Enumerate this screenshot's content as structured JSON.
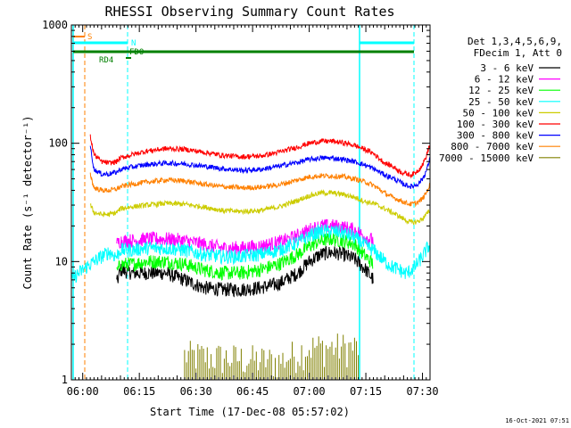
{
  "chart_data": {
    "type": "line",
    "title": "RHESSI Observing Summary Count Rates",
    "xlabel": "Start Time (17-Dec-08 05:57:02)",
    "ylabel": "Count Rate (s⁻¹ detector⁻¹)",
    "x_range_minutes": [
      0,
      95
    ],
    "x_ticks": [
      {
        "t": 3,
        "label": "06:00"
      },
      {
        "t": 18,
        "label": "06:15"
      },
      {
        "t": 33,
        "label": "06:30"
      },
      {
        "t": 48,
        "label": "06:45"
      },
      {
        "t": 63,
        "label": "07:00"
      },
      {
        "t": 78,
        "label": "07:15"
      },
      {
        "t": 93,
        "label": "07:30"
      }
    ],
    "ylim": [
      1,
      1000
    ],
    "yscale": "log",
    "y_ticks": [
      {
        "v": 1,
        "label": "1"
      },
      {
        "v": 10,
        "label": "10"
      },
      {
        "v": 100,
        "label": "100"
      },
      {
        "v": 1000,
        "label": "1000"
      }
    ],
    "legend_header": [
      "Det 1,3,4,5,6,9,",
      "FDecim 1, Att 0"
    ],
    "legend_position": "right",
    "series": [
      {
        "name": "3 - 6 keV",
        "color": "#000000",
        "x": [
          12,
          13,
          16,
          20,
          25,
          30,
          35,
          40,
          45,
          50,
          55,
          60,
          63,
          66,
          69,
          72,
          75,
          78,
          80
        ],
        "values": [
          6.5,
          8.5,
          8,
          8,
          8,
          7,
          6,
          5.8,
          5.8,
          6,
          6.5,
          8,
          10,
          11.5,
          12,
          11.5,
          10.5,
          8.5,
          7
        ]
      },
      {
        "name": "6 - 12 keV",
        "color": "#ff00ff",
        "x": [
          12,
          13,
          16,
          20,
          25,
          30,
          35,
          40,
          45,
          50,
          55,
          60,
          63,
          66,
          69,
          72,
          75,
          78,
          80
        ],
        "values": [
          14,
          15,
          15,
          15.5,
          15.5,
          15,
          14,
          13,
          13,
          13.5,
          14.5,
          16.5,
          18.5,
          20,
          20,
          19.5,
          18.5,
          16,
          15
        ]
      },
      {
        "name": "12 - 25 keV",
        "color": "#00ff00",
        "x": [
          12,
          13,
          16,
          20,
          25,
          30,
          35,
          40,
          45,
          50,
          55,
          60,
          63,
          66,
          69,
          72,
          75,
          78,
          80
        ],
        "values": [
          8,
          9.5,
          9.5,
          10,
          10,
          9.5,
          8.5,
          8,
          8,
          8.5,
          9.5,
          11.5,
          13.5,
          15,
          15.5,
          15,
          14,
          11,
          9.5
        ]
      },
      {
        "name": "25 - 50 keV",
        "color": "#00ffff",
        "x": [
          0,
          2,
          4,
          6,
          8,
          10,
          12,
          13,
          16,
          20,
          25,
          30,
          35,
          40,
          45,
          50,
          55,
          60,
          63,
          66,
          69,
          72,
          75,
          78,
          80,
          83,
          85,
          87,
          88,
          89,
          90,
          91,
          92,
          93,
          94,
          95
        ],
        "values": [
          7,
          8,
          9,
          10,
          11,
          12,
          11,
          12.5,
          12.5,
          13,
          13,
          12.5,
          11.5,
          11,
          11,
          11.5,
          12.5,
          14.5,
          16.5,
          18,
          18,
          17.5,
          16,
          13.5,
          12.5,
          10,
          9,
          8.5,
          8,
          8,
          8.5,
          9,
          10,
          11,
          12.5,
          14
        ]
      },
      {
        "name": "50 - 100 keV",
        "color": "#cccc00",
        "x": [
          5,
          6,
          8,
          10,
          12,
          13,
          16,
          20,
          25,
          30,
          35,
          40,
          45,
          50,
          55,
          60,
          63,
          66,
          69,
          72,
          75,
          78,
          80,
          83,
          85,
          87,
          88,
          89,
          90,
          91,
          92,
          93,
          94,
          95
        ],
        "values": [
          30,
          26,
          25,
          25,
          26,
          28,
          29,
          30,
          31,
          30.5,
          29,
          27,
          26.5,
          27,
          29,
          33,
          36,
          38,
          38,
          37,
          35,
          32,
          31,
          28,
          26,
          24,
          23,
          22,
          21.5,
          21.5,
          22,
          23,
          25,
          27
        ]
      },
      {
        "name": "100 - 300 keV",
        "color": "#ff0000",
        "x": [
          5,
          6,
          8,
          10,
          12,
          13,
          16,
          20,
          25,
          30,
          35,
          40,
          45,
          50,
          55,
          60,
          63,
          66,
          69,
          72,
          75,
          78,
          80,
          83,
          85,
          87,
          88,
          89,
          90,
          91,
          92,
          93,
          94,
          95
        ],
        "values": [
          115,
          80,
          70,
          68,
          70,
          75,
          80,
          86,
          90,
          89,
          84,
          79,
          77,
          78,
          84,
          93,
          100,
          104,
          104,
          101,
          96,
          88,
          82,
          68,
          64,
          58,
          56,
          55,
          54,
          56,
          60,
          66,
          77,
          100
        ]
      },
      {
        "name": "300 - 800 keV",
        "color": "#0000ff",
        "x": [
          5,
          6,
          8,
          10,
          12,
          13,
          16,
          20,
          25,
          30,
          35,
          40,
          45,
          50,
          55,
          60,
          63,
          66,
          69,
          72,
          75,
          78,
          80,
          83,
          85,
          87,
          88,
          89,
          90,
          91,
          92,
          93,
          94,
          95
        ],
        "values": [
          95,
          60,
          55,
          55,
          57,
          60,
          63,
          66,
          68,
          67,
          64,
          61,
          59,
          60,
          64,
          69,
          73,
          75,
          75,
          73,
          70,
          65,
          61,
          54,
          51,
          47,
          45,
          44,
          43,
          44,
          46,
          50,
          58,
          75
        ]
      },
      {
        "name": "800 - 7000 keV",
        "color": "#ff8000",
        "x": [
          5,
          6,
          8,
          10,
          12,
          13,
          16,
          20,
          25,
          30,
          35,
          40,
          45,
          50,
          55,
          60,
          63,
          66,
          69,
          72,
          75,
          78,
          80,
          83,
          85,
          87,
          88,
          89,
          90,
          91,
          92,
          93,
          94,
          95
        ],
        "values": [
          55,
          42,
          40,
          40,
          41,
          43,
          45,
          47,
          49,
          48,
          45,
          43,
          42,
          42.5,
          44.5,
          49,
          52,
          53,
          53,
          52,
          50,
          47,
          44,
          38,
          35,
          33,
          32,
          31,
          30.5,
          31,
          32,
          34,
          38,
          45
        ]
      },
      {
        "name": "7000 - 15000 keV",
        "color": "#808000",
        "x": [
          30,
          55,
          63,
          70,
          76
        ],
        "values": [
          1.8,
          1.6,
          2.1,
          2.1,
          2.1
        ]
      }
    ],
    "annotations": [
      {
        "label": "S",
        "color": "#ff8000"
      },
      {
        "label": "N",
        "color": "#00ffff"
      },
      {
        "label": "FDO",
        "color": "#008000"
      },
      {
        "label": "RD4",
        "color": "#008000"
      }
    ]
  },
  "footer_timestamp": "16-Oct-2021 07:51"
}
